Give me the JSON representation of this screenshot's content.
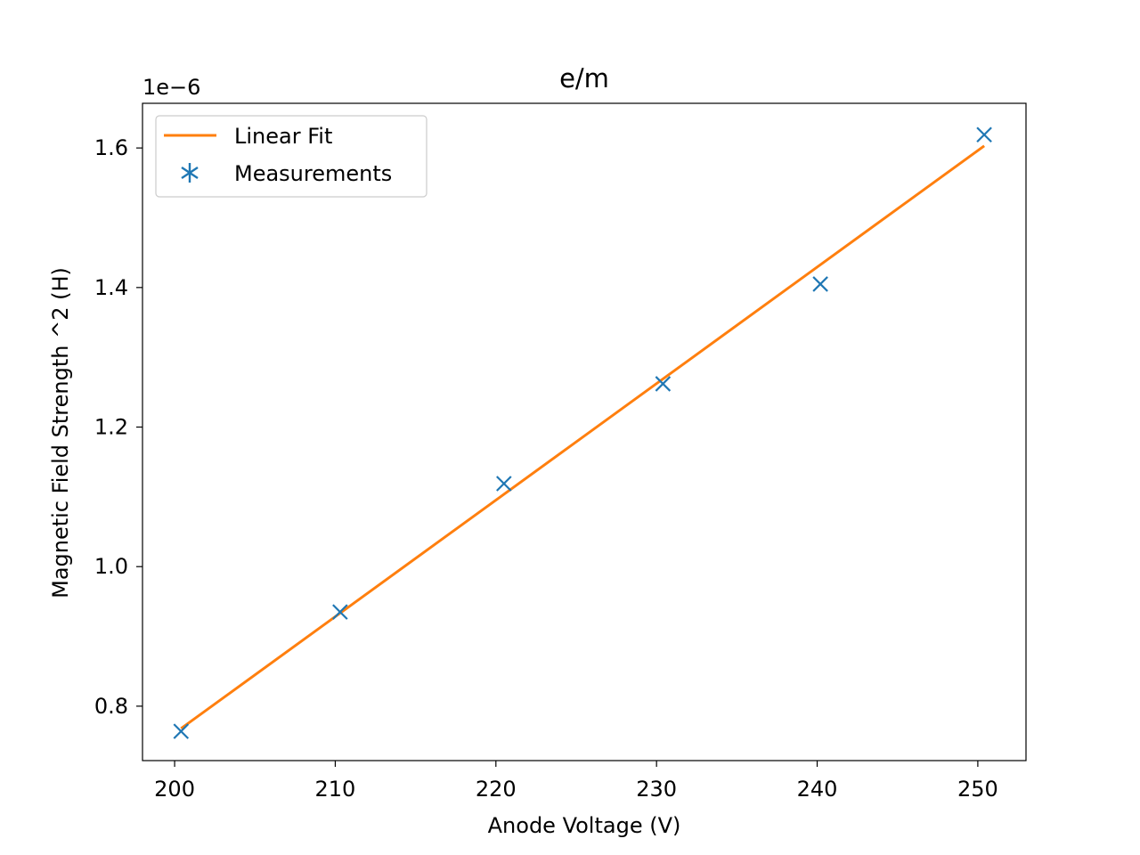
{
  "chart_data": {
    "type": "line",
    "title": "e/m",
    "xlabel": "Anode Voltage (V)",
    "ylabel": "Magnetic Field Strength ^2 (H)",
    "y_offset_label": "1e−6",
    "y_scale": 1e-06,
    "xlim": [
      198,
      253
    ],
    "ylim": [
      0.722,
      1.664
    ],
    "x_ticks": [
      200,
      210,
      220,
      230,
      240,
      250
    ],
    "x_tick_labels": [
      "200",
      "210",
      "220",
      "230",
      "240",
      "250"
    ],
    "y_ticks": [
      0.8,
      1.0,
      1.2,
      1.4,
      1.6
    ],
    "y_tick_labels": [
      "0.8",
      "1.0",
      "1.2",
      "1.4",
      "1.6"
    ],
    "grid": false,
    "legend_position": "top-left",
    "series": [
      {
        "name": "Linear Fit",
        "kind": "line",
        "color": "#ff7f0e",
        "x": [
          200.4,
          250.4
        ],
        "y": [
          0.768,
          1.603
        ]
      },
      {
        "name": "Measurements",
        "kind": "scatter",
        "marker": "x",
        "legend_marker": "asterisk",
        "color": "#1f77b4",
        "x": [
          200.4,
          210.3,
          220.5,
          230.4,
          240.2,
          250.4
        ],
        "y": [
          0.764,
          0.935,
          1.119,
          1.262,
          1.405,
          1.619
        ]
      }
    ]
  }
}
